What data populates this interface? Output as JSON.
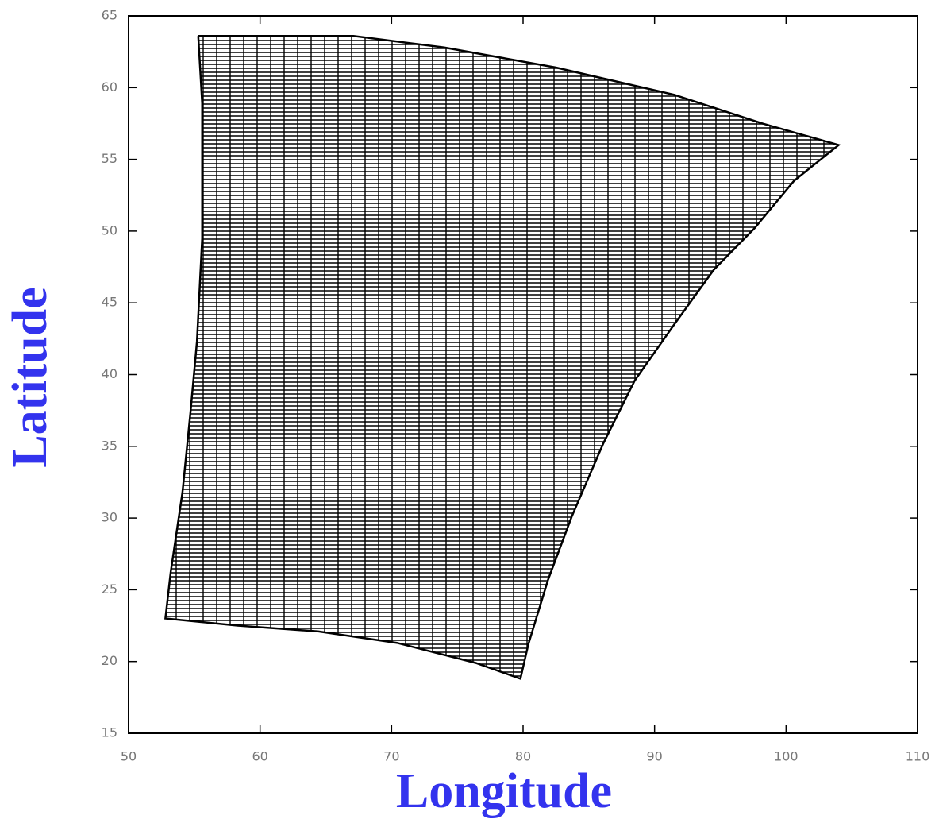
{
  "chart_data": {
    "type": "line",
    "xlabel": "Longitude",
    "ylabel": "Latitude",
    "x": [
      55.3,
      67.1,
      74.0,
      82.5,
      91.5,
      98.2,
      104.0,
      100.6,
      97.6,
      94.5,
      91.5,
      88.5,
      86.1,
      83.7,
      81.9,
      80.4,
      79.8,
      76.4,
      70.4,
      64.4,
      58.3,
      52.8,
      53.2,
      54.1,
      54.7,
      55.2,
      55.6,
      55.6,
      55.3
    ],
    "series": [
      {
        "color": "#000000",
        "values": [
          63.6,
          63.6,
          62.8,
          61.4,
          59.5,
          57.5,
          56.0,
          53.5,
          50.2,
          47.3,
          43.5,
          39.6,
          35.2,
          30.1,
          25.7,
          21.2,
          18.8,
          19.9,
          21.3,
          22.1,
          22.5,
          23.0,
          26.2,
          31.8,
          37.3,
          42.3,
          49.5,
          58.9,
          63.6
        ]
      }
    ],
    "xlim": [
      50,
      110
    ],
    "ylim": [
      15,
      65
    ],
    "xticks": [
      50,
      60,
      70,
      80,
      90,
      100,
      110
    ],
    "yticks": [
      15,
      20,
      25,
      30,
      35,
      40,
      45,
      50,
      55,
      60,
      65
    ],
    "label_color": "#3333ee"
  }
}
